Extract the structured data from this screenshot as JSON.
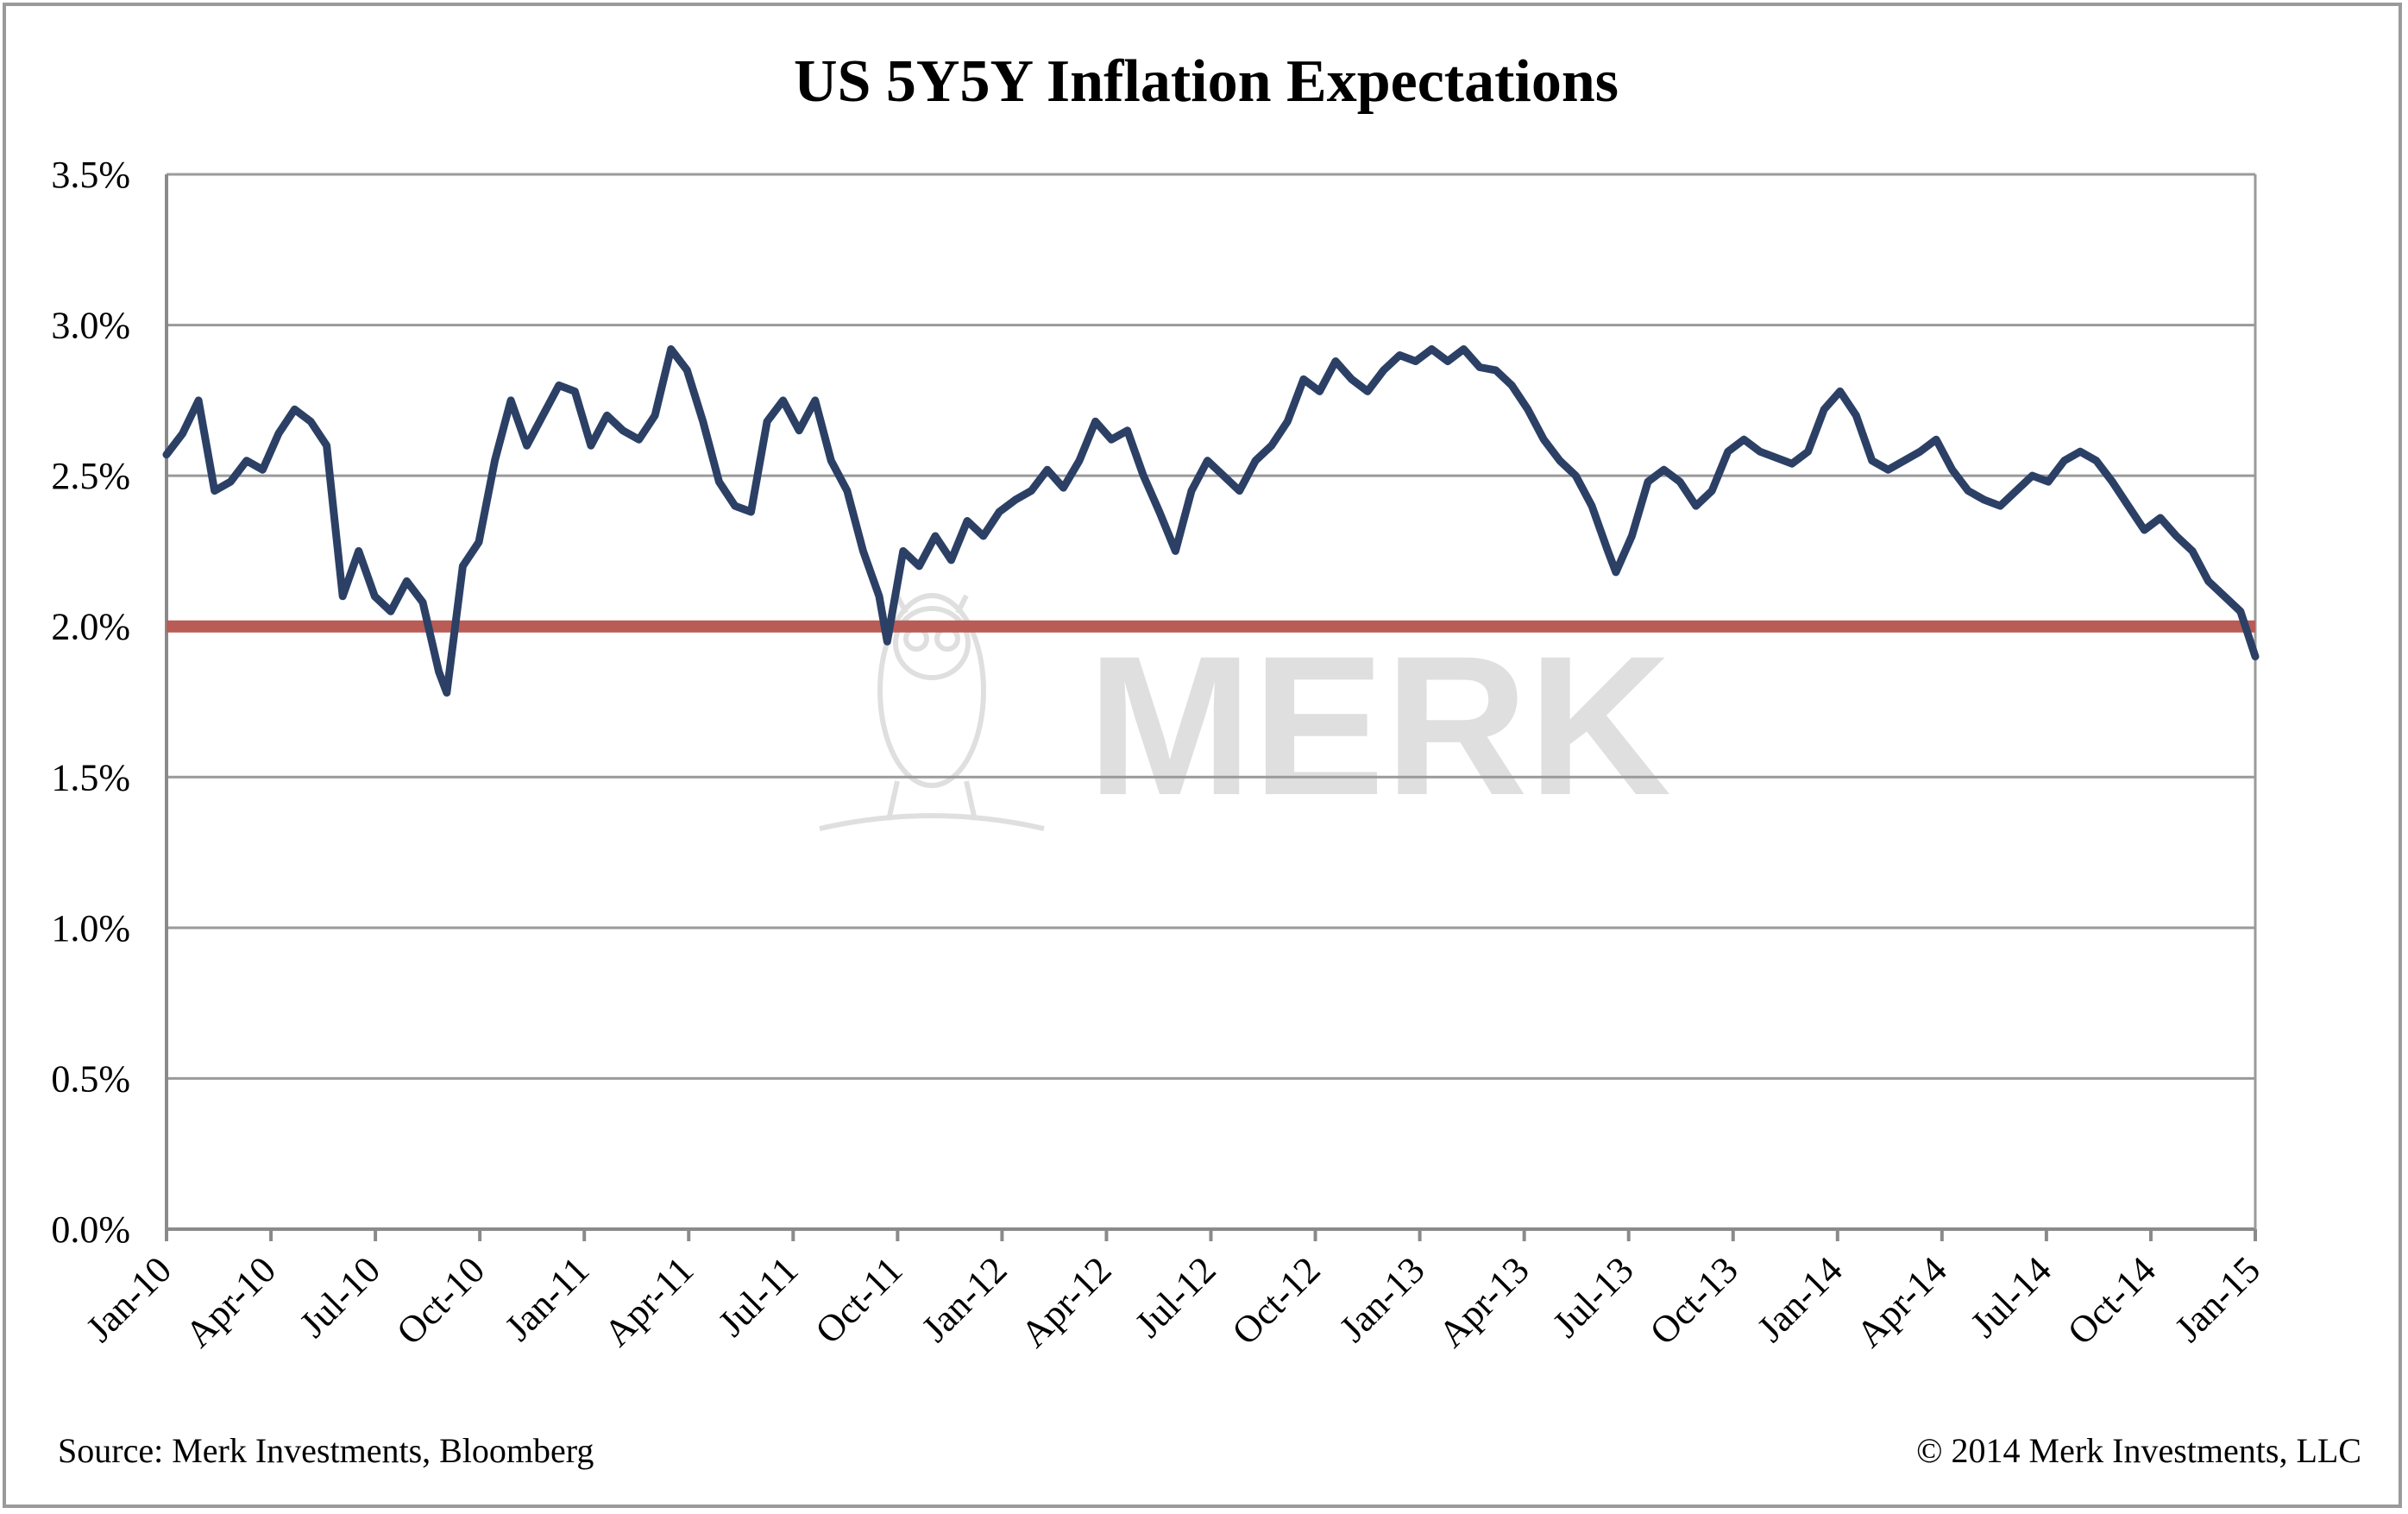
{
  "chart_data": {
    "type": "line",
    "title": "US 5Y5Y Inflation Expectations",
    "xlabel": "",
    "ylabel": "",
    "x_ticks": [
      "Jan-10",
      "Apr-10",
      "Jul-10",
      "Oct-10",
      "Jan-11",
      "Apr-11",
      "Jul-11",
      "Oct-11",
      "Jan-12",
      "Apr-12",
      "Jul-12",
      "Oct-12",
      "Jan-13",
      "Apr-13",
      "Jul-13",
      "Oct-13",
      "Jan-14",
      "Apr-14",
      "Jul-14",
      "Oct-14",
      "Jan-15"
    ],
    "y_ticks": [
      "0.0%",
      "0.5%",
      "1.0%",
      "1.5%",
      "2.0%",
      "2.5%",
      "3.0%",
      "3.5%"
    ],
    "ylim": [
      0,
      3.5
    ],
    "xlim": [
      "2010-01-01",
      "2015-01-01"
    ],
    "grid": "horizontal",
    "reference_line": {
      "value": 2.0,
      "color": "#b85c55"
    },
    "series": [
      {
        "color": "#2c4066",
        "points": [
          [
            "2010-01-01",
            2.57
          ],
          [
            "2010-01-15",
            2.64
          ],
          [
            "2010-01-29",
            2.75
          ],
          [
            "2010-02-12",
            2.45
          ],
          [
            "2010-02-26",
            2.48
          ],
          [
            "2010-03-12",
            2.55
          ],
          [
            "2010-03-26",
            2.52
          ],
          [
            "2010-04-09",
            2.64
          ],
          [
            "2010-04-23",
            2.72
          ],
          [
            "2010-05-07",
            2.68
          ],
          [
            "2010-05-21",
            2.6
          ],
          [
            "2010-06-04",
            2.1
          ],
          [
            "2010-06-18",
            2.25
          ],
          [
            "2010-07-02",
            2.1
          ],
          [
            "2010-07-16",
            2.05
          ],
          [
            "2010-07-30",
            2.15
          ],
          [
            "2010-08-13",
            2.08
          ],
          [
            "2010-08-27",
            1.85
          ],
          [
            "2010-09-03",
            1.78
          ],
          [
            "2010-09-17",
            2.2
          ],
          [
            "2010-10-01",
            2.28
          ],
          [
            "2010-10-15",
            2.55
          ],
          [
            "2010-10-29",
            2.75
          ],
          [
            "2010-11-12",
            2.6
          ],
          [
            "2010-11-26",
            2.7
          ],
          [
            "2010-12-10",
            2.8
          ],
          [
            "2010-12-24",
            2.78
          ],
          [
            "2011-01-07",
            2.6
          ],
          [
            "2011-01-21",
            2.7
          ],
          [
            "2011-02-04",
            2.65
          ],
          [
            "2011-02-18",
            2.62
          ],
          [
            "2011-03-04",
            2.7
          ],
          [
            "2011-03-18",
            2.92
          ],
          [
            "2011-04-01",
            2.85
          ],
          [
            "2011-04-15",
            2.68
          ],
          [
            "2011-04-29",
            2.48
          ],
          [
            "2011-05-13",
            2.4
          ],
          [
            "2011-05-27",
            2.38
          ],
          [
            "2011-06-10",
            2.68
          ],
          [
            "2011-06-24",
            2.75
          ],
          [
            "2011-07-08",
            2.65
          ],
          [
            "2011-07-22",
            2.75
          ],
          [
            "2011-08-05",
            2.55
          ],
          [
            "2011-08-19",
            2.45
          ],
          [
            "2011-09-02",
            2.25
          ],
          [
            "2011-09-16",
            2.1
          ],
          [
            "2011-09-23",
            1.95
          ],
          [
            "2011-10-07",
            2.25
          ],
          [
            "2011-10-21",
            2.2
          ],
          [
            "2011-11-04",
            2.3
          ],
          [
            "2011-11-18",
            2.22
          ],
          [
            "2011-12-02",
            2.35
          ],
          [
            "2011-12-16",
            2.3
          ],
          [
            "2011-12-30",
            2.38
          ],
          [
            "2012-01-13",
            2.42
          ],
          [
            "2012-01-27",
            2.45
          ],
          [
            "2012-02-10",
            2.52
          ],
          [
            "2012-02-24",
            2.46
          ],
          [
            "2012-03-09",
            2.55
          ],
          [
            "2012-03-23",
            2.68
          ],
          [
            "2012-04-06",
            2.62
          ],
          [
            "2012-04-20",
            2.65
          ],
          [
            "2012-05-04",
            2.5
          ],
          [
            "2012-05-18",
            2.38
          ],
          [
            "2012-06-01",
            2.25
          ],
          [
            "2012-06-15",
            2.45
          ],
          [
            "2012-06-29",
            2.55
          ],
          [
            "2012-07-13",
            2.5
          ],
          [
            "2012-07-27",
            2.45
          ],
          [
            "2012-08-10",
            2.55
          ],
          [
            "2012-08-24",
            2.6
          ],
          [
            "2012-09-07",
            2.68
          ],
          [
            "2012-09-21",
            2.82
          ],
          [
            "2012-10-05",
            2.78
          ],
          [
            "2012-10-19",
            2.88
          ],
          [
            "2012-11-02",
            2.82
          ],
          [
            "2012-11-16",
            2.78
          ],
          [
            "2012-11-30",
            2.85
          ],
          [
            "2012-12-14",
            2.9
          ],
          [
            "2012-12-28",
            2.88
          ],
          [
            "2013-01-11",
            2.92
          ],
          [
            "2013-01-25",
            2.88
          ],
          [
            "2013-02-08",
            2.92
          ],
          [
            "2013-02-22",
            2.86
          ],
          [
            "2013-03-08",
            2.85
          ],
          [
            "2013-03-22",
            2.8
          ],
          [
            "2013-04-05",
            2.72
          ],
          [
            "2013-04-19",
            2.62
          ],
          [
            "2013-05-03",
            2.55
          ],
          [
            "2013-05-17",
            2.5
          ],
          [
            "2013-05-31",
            2.4
          ],
          [
            "2013-06-14",
            2.25
          ],
          [
            "2013-06-21",
            2.18
          ],
          [
            "2013-07-05",
            2.3
          ],
          [
            "2013-07-19",
            2.48
          ],
          [
            "2013-08-02",
            2.52
          ],
          [
            "2013-08-16",
            2.48
          ],
          [
            "2013-08-30",
            2.4
          ],
          [
            "2013-09-13",
            2.45
          ],
          [
            "2013-09-27",
            2.58
          ],
          [
            "2013-10-11",
            2.62
          ],
          [
            "2013-10-25",
            2.58
          ],
          [
            "2013-11-08",
            2.56
          ],
          [
            "2013-11-22",
            2.54
          ],
          [
            "2013-12-06",
            2.58
          ],
          [
            "2013-12-20",
            2.72
          ],
          [
            "2014-01-03",
            2.78
          ],
          [
            "2014-01-17",
            2.7
          ],
          [
            "2014-01-31",
            2.55
          ],
          [
            "2014-02-14",
            2.52
          ],
          [
            "2014-02-28",
            2.55
          ],
          [
            "2014-03-14",
            2.58
          ],
          [
            "2014-03-28",
            2.62
          ],
          [
            "2014-04-11",
            2.52
          ],
          [
            "2014-04-25",
            2.45
          ],
          [
            "2014-05-09",
            2.42
          ],
          [
            "2014-05-23",
            2.4
          ],
          [
            "2014-06-06",
            2.45
          ],
          [
            "2014-06-20",
            2.5
          ],
          [
            "2014-07-04",
            2.48
          ],
          [
            "2014-07-18",
            2.55
          ],
          [
            "2014-08-01",
            2.58
          ],
          [
            "2014-08-15",
            2.55
          ],
          [
            "2014-08-29",
            2.48
          ],
          [
            "2014-09-12",
            2.4
          ],
          [
            "2014-09-26",
            2.32
          ],
          [
            "2014-10-10",
            2.36
          ],
          [
            "2014-10-24",
            2.3
          ],
          [
            "2014-11-07",
            2.25
          ],
          [
            "2014-11-21",
            2.15
          ],
          [
            "2014-12-05",
            2.1
          ],
          [
            "2014-12-19",
            2.05
          ],
          [
            "2015-01-01",
            1.9
          ]
        ]
      }
    ]
  },
  "watermark": {
    "text": "MERK"
  },
  "footer": {
    "source": "Source: Merk Investments, Bloomberg",
    "copyright": "© 2014 Merk Investments, LLC"
  }
}
